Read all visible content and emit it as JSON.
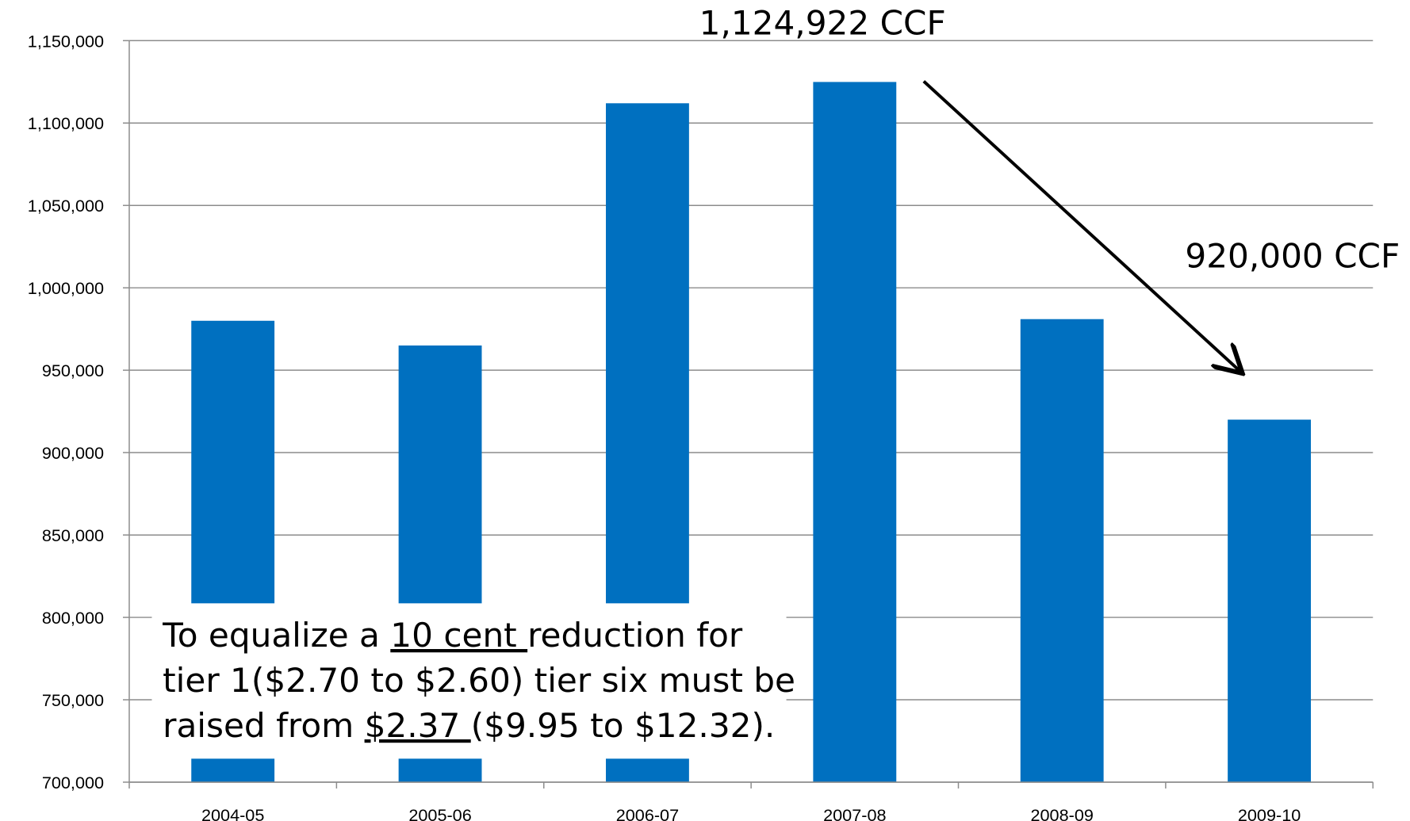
{
  "chart_data": {
    "type": "bar",
    "categories": [
      "2004-05",
      "2005-06",
      "2006-07",
      "2007-08",
      "2008-09",
      "2009-10"
    ],
    "values": [
      980000,
      965000,
      1112000,
      1124922,
      981000,
      920000
    ],
    "color": "#0070c0",
    "ylim": [
      700000,
      1150000
    ],
    "yticks": [
      {
        "value": 700000,
        "label": "700,000"
      },
      {
        "value": 750000,
        "label": "750,000"
      },
      {
        "value": 800000,
        "label": "800,000"
      },
      {
        "value": 850000,
        "label": "850,000"
      },
      {
        "value": 900000,
        "label": "900,000"
      },
      {
        "value": 950000,
        "label": "950,000"
      },
      {
        "value": 1000000,
        "label": "1,000,000"
      },
      {
        "value": 1050000,
        "label": "1,050,000"
      },
      {
        "value": 1100000,
        "label": "1,100,000"
      },
      {
        "value": 1150000,
        "label": "1,150,000"
      }
    ],
    "grid": true,
    "annotations": [
      "1,124,922 CCF",
      "920,000 CCF"
    ],
    "note": [
      [
        {
          "text": "To equalize a "
        },
        {
          "text": "10 cent ",
          "underline": true
        },
        {
          "text": "reduction for"
        }
      ],
      [
        {
          "text": "tier 1($2.70 to $2.60) tier six must be"
        }
      ],
      [
        {
          "text": "raised from "
        },
        {
          "text": "$2.37 ",
          "underline": true
        },
        {
          "text": "($9.95 to $12.32)."
        }
      ]
    ]
  }
}
